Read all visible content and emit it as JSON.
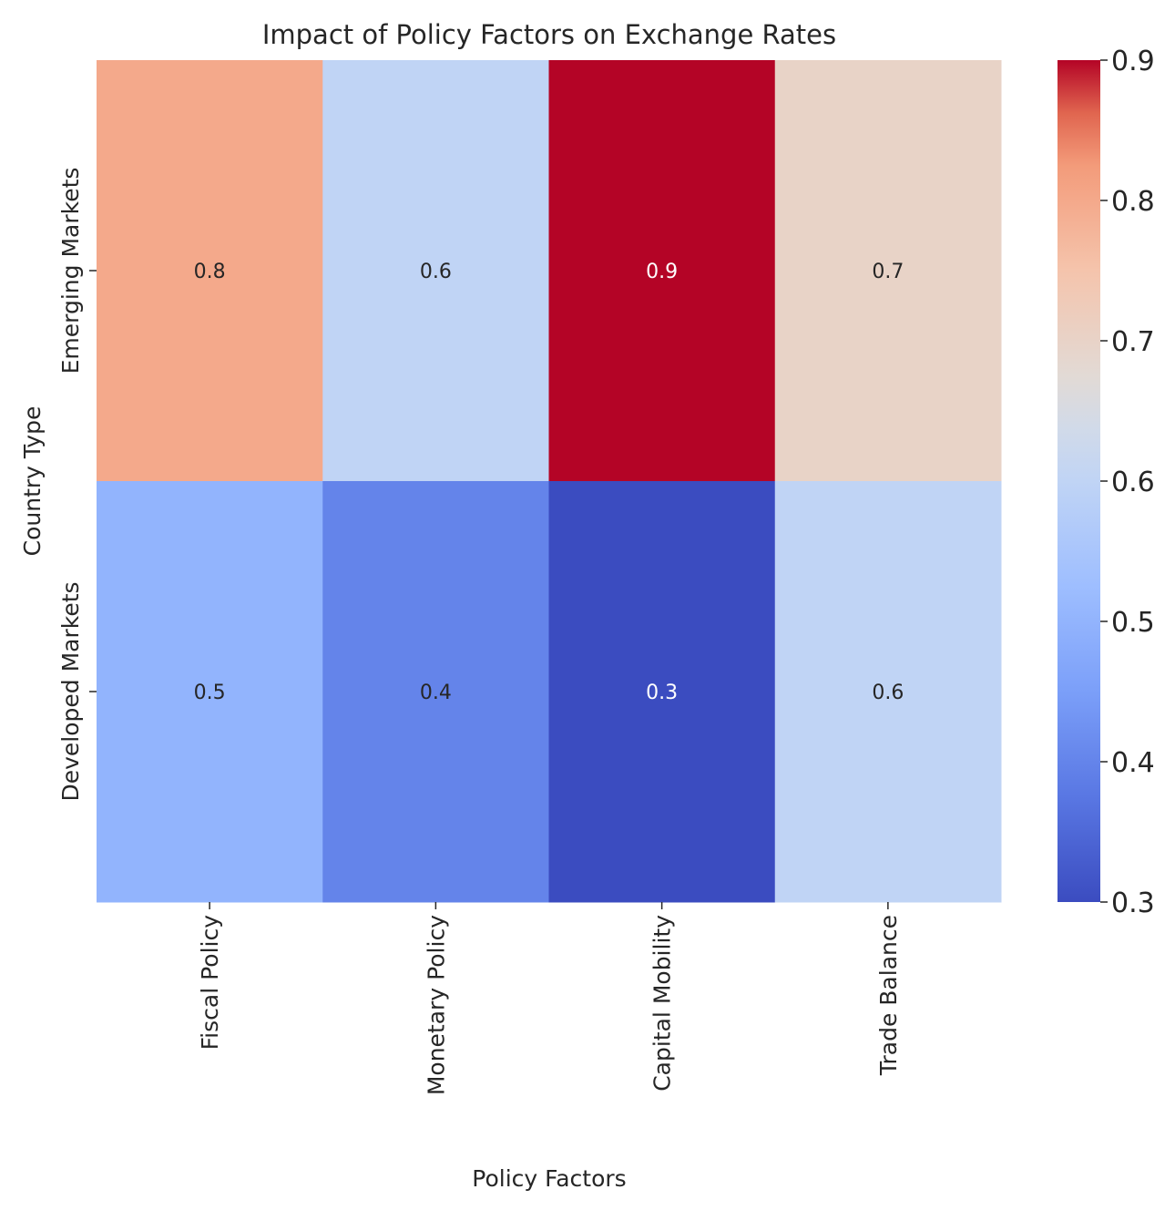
{
  "chart_data": {
    "type": "heatmap",
    "title": "Impact of Policy Factors on Exchange Rates",
    "xlabel": "Policy Factors",
    "ylabel": "Country Type",
    "columns": [
      "Fiscal Policy",
      "Monetary Policy",
      "Capital Mobility",
      "Trade Balance"
    ],
    "rows": [
      "Emerging Markets",
      "Developed Markets"
    ],
    "values": [
      [
        0.8,
        0.6,
        0.9,
        0.7
      ],
      [
        0.5,
        0.4,
        0.3,
        0.6
      ]
    ],
    "annotations": true,
    "colormap": "coolwarm",
    "colorbar": {
      "range": [
        0.3,
        0.9
      ],
      "ticks": [
        "0.3",
        "0.4",
        "0.5",
        "0.6",
        "0.7",
        "0.8",
        "0.9"
      ]
    },
    "grid": false
  }
}
